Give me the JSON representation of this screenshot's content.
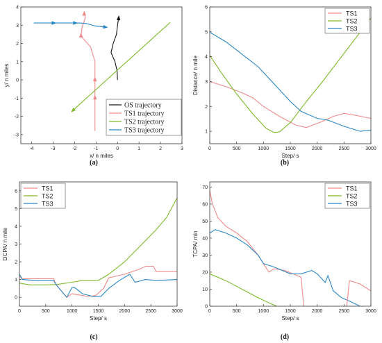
{
  "colors": {
    "os": "#111111",
    "ts1": "#f08a8a",
    "ts2": "#7fba2a",
    "ts3": "#2a86c4"
  },
  "chart_data": [
    {
      "id": "a",
      "type": "line",
      "caption": "(a)",
      "xlabel": "x/ n miles",
      "ylabel": "y/ n miles",
      "xlim": [
        -4.5,
        3
      ],
      "ylim": [
        -3.5,
        4
      ],
      "xticks": [
        -4,
        -3,
        -2,
        -1,
        0,
        1,
        2,
        3
      ],
      "yticks": [
        -3,
        -2,
        -1,
        0,
        1,
        2,
        3,
        4
      ],
      "legend_position": "bottom-right",
      "series": [
        {
          "name": "OS trajectory",
          "color": "#111111",
          "points": [
            [
              0,
              0
            ],
            [
              -0.02,
              0.5
            ],
            [
              -0.12,
              1.0
            ],
            [
              -0.3,
              1.5
            ],
            [
              -0.2,
              2.0
            ],
            [
              -0.05,
              2.5
            ],
            [
              0.0,
              3.0
            ],
            [
              0.05,
              3.35
            ]
          ]
        },
        {
          "name": "TS1 trajectory",
          "color": "#f08a8a",
          "points": [
            [
              -1.05,
              -2.8
            ],
            [
              -1.05,
              -1.0
            ],
            [
              -1.05,
              0.0
            ],
            [
              -1.05,
              1.0
            ],
            [
              -1.25,
              1.8
            ],
            [
              -1.7,
              2.4
            ],
            [
              -1.65,
              2.9
            ],
            [
              -1.5,
              3.4
            ],
            [
              -1.55,
              3.6
            ]
          ]
        },
        {
          "name": "TS2 trajectory",
          "color": "#7fba2a",
          "points": [
            [
              -2.1,
              -1.7
            ],
            [
              2.45,
              3.15
            ]
          ]
        },
        {
          "name": "TS3 trajectory",
          "color": "#2a86c4",
          "points": [
            [
              -3.9,
              3.12
            ],
            [
              -1.8,
              3.12
            ],
            [
              -1.5,
              3.1
            ],
            [
              -1.0,
              2.95
            ],
            [
              -0.6,
              2.9
            ]
          ]
        }
      ]
    },
    {
      "id": "b",
      "type": "line",
      "caption": "(b)",
      "xlabel": "Step/ s",
      "ylabel": "Distance/ n mile",
      "xlim": [
        0,
        3000
      ],
      "ylim": [
        0.5,
        6
      ],
      "xticks": [
        0,
        500,
        1000,
        1500,
        2000,
        2500,
        3000
      ],
      "yticks": [
        1,
        2,
        3,
        4,
        5,
        6
      ],
      "legend_position": "top-right",
      "series": [
        {
          "name": "TS1",
          "color": "#f08a8a",
          "points": [
            [
              0,
              3.0
            ],
            [
              300,
              2.8
            ],
            [
              600,
              2.55
            ],
            [
              800,
              2.35
            ],
            [
              1000,
              2.0
            ],
            [
              1300,
              1.6
            ],
            [
              1600,
              1.25
            ],
            [
              1800,
              1.15
            ],
            [
              2100,
              1.4
            ],
            [
              2300,
              1.6
            ],
            [
              2500,
              1.72
            ],
            [
              2700,
              1.65
            ],
            [
              3000,
              1.52
            ]
          ]
        },
        {
          "name": "TS2",
          "color": "#7fba2a",
          "points": [
            [
              0,
              4.05
            ],
            [
              200,
              3.4
            ],
            [
              500,
              2.5
            ],
            [
              800,
              1.7
            ],
            [
              1050,
              1.12
            ],
            [
              1200,
              0.95
            ],
            [
              1300,
              0.98
            ],
            [
              1500,
              1.35
            ],
            [
              1800,
              2.2
            ],
            [
              2100,
              3.0
            ],
            [
              2400,
              3.85
            ],
            [
              2700,
              4.7
            ],
            [
              3000,
              5.55
            ]
          ]
        },
        {
          "name": "TS3",
          "color": "#2a86c4",
          "points": [
            [
              0,
              4.98
            ],
            [
              300,
              4.6
            ],
            [
              600,
              4.1
            ],
            [
              900,
              3.6
            ],
            [
              1200,
              2.9
            ],
            [
              1500,
              2.2
            ],
            [
              1700,
              1.8
            ],
            [
              2000,
              1.52
            ],
            [
              2200,
              1.45
            ],
            [
              2500,
              1.2
            ],
            [
              2800,
              1.0
            ],
            [
              3000,
              1.05
            ]
          ]
        }
      ]
    },
    {
      "id": "c",
      "type": "line",
      "caption": "(c)",
      "xlabel": "Step/ s",
      "ylabel": "DCPA/ n mile",
      "xlim": [
        0,
        3000
      ],
      "ylim": [
        -0.5,
        6.5
      ],
      "xticks": [
        0,
        500,
        1000,
        1500,
        2000,
        2500,
        3000
      ],
      "yticks": [
        0,
        1,
        2,
        3,
        4,
        5,
        6
      ],
      "legend_position": "top-left",
      "series": [
        {
          "name": "TS1",
          "color": "#f08a8a",
          "points": [
            [
              0,
              1.2
            ],
            [
              50,
              1.05
            ],
            [
              400,
              1.05
            ],
            [
              650,
              1.05
            ],
            [
              700,
              0.7
            ],
            [
              900,
              0.0
            ],
            [
              1000,
              0.2
            ],
            [
              1100,
              0.15
            ],
            [
              1300,
              0.05
            ],
            [
              1450,
              0.1
            ],
            [
              1600,
              0.5
            ],
            [
              1700,
              1.1
            ],
            [
              2000,
              1.3
            ],
            [
              2300,
              1.6
            ],
            [
              2400,
              1.75
            ],
            [
              2550,
              1.75
            ],
            [
              2600,
              1.45
            ],
            [
              3000,
              1.45
            ]
          ]
        },
        {
          "name": "TS2",
          "color": "#7fba2a",
          "points": [
            [
              0,
              0.8
            ],
            [
              200,
              0.7
            ],
            [
              500,
              0.7
            ],
            [
              700,
              0.72
            ],
            [
              1000,
              0.85
            ],
            [
              1200,
              0.95
            ],
            [
              1500,
              0.95
            ],
            [
              1700,
              1.3
            ],
            [
              2000,
              2.0
            ],
            [
              2300,
              2.9
            ],
            [
              2600,
              3.8
            ],
            [
              2800,
              4.5
            ],
            [
              3000,
              5.6
            ]
          ]
        },
        {
          "name": "TS3",
          "color": "#2a86c4",
          "points": [
            [
              0,
              1.3
            ],
            [
              60,
              1.0
            ],
            [
              300,
              0.95
            ],
            [
              650,
              0.95
            ],
            [
              700,
              0.7
            ],
            [
              900,
              0.0
            ],
            [
              1000,
              0.55
            ],
            [
              1050,
              0.55
            ],
            [
              1200,
              0.2
            ],
            [
              1400,
              0.05
            ],
            [
              1550,
              0.05
            ],
            [
              1700,
              0.5
            ],
            [
              1900,
              0.95
            ],
            [
              2100,
              1.3
            ],
            [
              2200,
              0.85
            ],
            [
              2400,
              1.0
            ],
            [
              2600,
              0.95
            ],
            [
              3000,
              1.0
            ]
          ]
        }
      ]
    },
    {
      "id": "d",
      "type": "line",
      "caption": "(d)",
      "xlabel": "Step/ s",
      "ylabel": "TCPA/ min",
      "xlim": [
        0,
        3000
      ],
      "ylim": [
        0,
        73
      ],
      "xticks": [
        0,
        500,
        1000,
        1500,
        2000,
        2500,
        3000
      ],
      "yticks": [
        0,
        10,
        20,
        30,
        40,
        50,
        60,
        70
      ],
      "legend_position": "top-right",
      "series": [
        {
          "name": "TS1",
          "color": "#f08a8a",
          "points": [
            [
              0,
              68
            ],
            [
              50,
              60
            ],
            [
              150,
              52
            ],
            [
              300,
              47
            ],
            [
              500,
              43
            ],
            [
              700,
              38
            ],
            [
              900,
              30
            ],
            [
              1100,
              20
            ],
            [
              1200,
              22
            ],
            [
              1400,
              21
            ],
            [
              1700,
              17
            ],
            [
              1750,
              0
            ]
          ]
        },
        {
          "name": "TS2",
          "color": "#7fba2a",
          "points": [
            [
              0,
              19
            ],
            [
              300,
              15
            ],
            [
              600,
              10
            ],
            [
              900,
              5
            ],
            [
              1100,
              2
            ],
            [
              1250,
              0
            ]
          ]
        },
        {
          "name": "TS3",
          "color": "#2a86c4",
          "points": [
            [
              0,
              43
            ],
            [
              100,
              45
            ],
            [
              300,
              43
            ],
            [
              500,
              40
            ],
            [
              700,
              36
            ],
            [
              900,
              30
            ],
            [
              1000,
              25
            ],
            [
              1200,
              23
            ],
            [
              1500,
              19
            ],
            [
              1700,
              19
            ],
            [
              1900,
              21
            ],
            [
              2000,
              19
            ],
            [
              2150,
              14
            ],
            [
              2200,
              18
            ],
            [
              2300,
              9
            ],
            [
              2450,
              5
            ],
            [
              2600,
              3
            ],
            [
              2800,
              0
            ]
          ]
        },
        {
          "name": "",
          "color": "#f08a8a",
          "points": [
            [
              2550,
              0
            ],
            [
              2600,
              15
            ],
            [
              2800,
              13
            ],
            [
              3000,
              9
            ]
          ]
        }
      ]
    }
  ]
}
